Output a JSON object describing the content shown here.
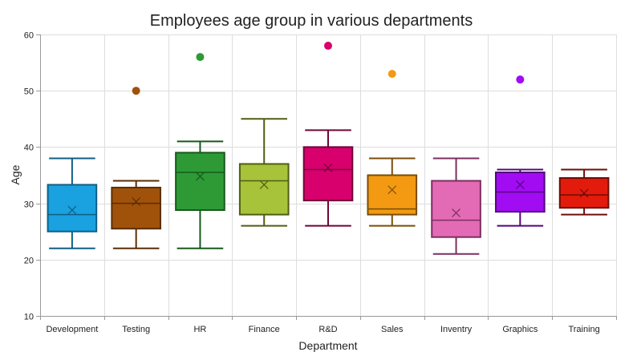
{
  "chart_data": {
    "type": "box",
    "title": "Employees age group in various departments",
    "xlabel": "Department",
    "ylabel": "Age",
    "ylim": [
      10,
      60
    ],
    "yticks": [
      10,
      20,
      30,
      40,
      50,
      60
    ],
    "grid": true,
    "legend": "none",
    "categories": [
      "Development",
      "Testing",
      "HR",
      "Finance",
      "R&D",
      "Sales",
      "Inventry",
      "Graphics",
      "Training"
    ],
    "boxes": [
      {
        "category": "Development",
        "min": 22,
        "q1": 25,
        "median": 28,
        "q3": 33.3,
        "max": 38,
        "mean": 28.8,
        "outliers": [],
        "fill": "#1aa1e0",
        "stroke": "#0f5f86"
      },
      {
        "category": "Testing",
        "min": 22,
        "q1": 25.5,
        "median": 30,
        "q3": 32.8,
        "max": 34,
        "mean": 30.3,
        "outliers": [
          50
        ],
        "fill": "#a0520a",
        "stroke": "#5a2e05"
      },
      {
        "category": "HR",
        "min": 22,
        "q1": 28.8,
        "median": 35.5,
        "q3": 39,
        "max": 41,
        "mean": 34.8,
        "outliers": [
          56
        ],
        "fill": "#2e9a36",
        "stroke": "#155a1a"
      },
      {
        "category": "Finance",
        "min": 26,
        "q1": 28,
        "median": 34,
        "q3": 37,
        "max": 45,
        "mean": 33.3,
        "outliers": [],
        "fill": "#a6c33a",
        "stroke": "#4f5e12"
      },
      {
        "category": "R&D",
        "min": 26,
        "q1": 30.5,
        "median": 36,
        "q3": 40,
        "max": 43,
        "mean": 36.3,
        "outliers": [
          58
        ],
        "fill": "#d8006c",
        "stroke": "#6e0538"
      },
      {
        "category": "Sales",
        "min": 26,
        "q1": 28,
        "median": 29,
        "q3": 35,
        "max": 38,
        "mean": 32.4,
        "outliers": [
          53
        ],
        "fill": "#f39a12",
        "stroke": "#7a4e08"
      },
      {
        "category": "Inventry",
        "min": 21,
        "q1": 24,
        "median": 27,
        "q3": 34,
        "max": 38,
        "mean": 28.3,
        "outliers": [],
        "fill": "#e36bb6",
        "stroke": "#7d2e61"
      },
      {
        "category": "Graphics",
        "min": 26,
        "q1": 28.5,
        "median": 32,
        "q3": 35.5,
        "max": 36,
        "mean": 33.3,
        "outliers": [
          52
        ],
        "fill": "#a10cf2",
        "stroke": "#55057f"
      },
      {
        "category": "Training",
        "min": 28,
        "q1": 29.2,
        "median": 31.5,
        "q3": 34.5,
        "max": 36,
        "mean": 31.8,
        "outliers": [],
        "fill": "#e31b0c",
        "stroke": "#6e0d06"
      }
    ]
  }
}
